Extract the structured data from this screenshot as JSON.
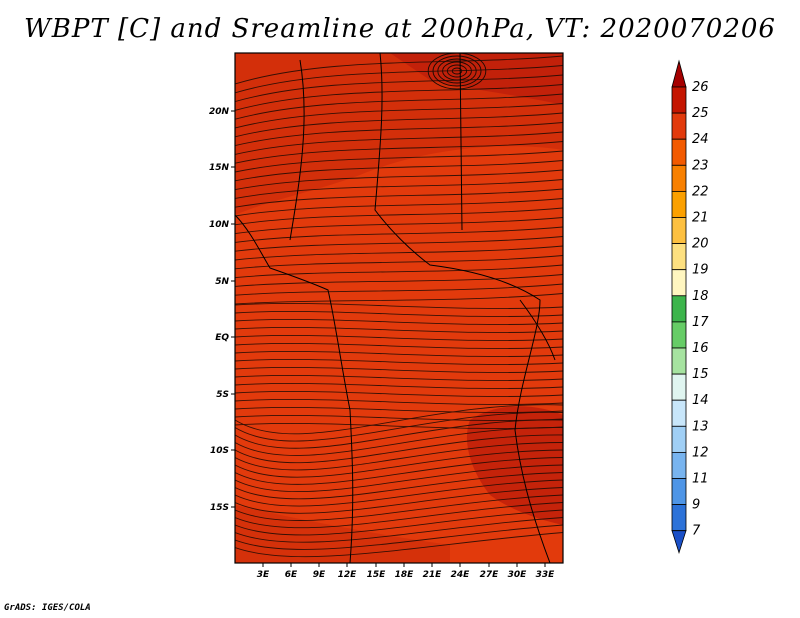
{
  "title": "WBPT [C] and Sreamline at 200hPa, VT: 2020070206",
  "credit": "GrADS: IGES/COLA",
  "colors": {
    "background": "#e23a0c",
    "streamline": "#1a0a04",
    "land_region": "#d02e0a",
    "deep_region": "#c0200a"
  },
  "colorbar": {
    "levels": [
      "26",
      "25",
      "24",
      "23",
      "22",
      "21",
      "20",
      "19",
      "18",
      "17",
      "16",
      "15",
      "14",
      "13",
      "12",
      "11",
      "9",
      "7"
    ],
    "colors": [
      "#a50000",
      "#c41500",
      "#e23a0c",
      "#f25a00",
      "#f88000",
      "#fba000",
      "#fdc040",
      "#fde080",
      "#fff6c0",
      "#3cb44b",
      "#66cc66",
      "#a6e3a0",
      "#e0f5f0",
      "#c8e6fa",
      "#a0cff5",
      "#78b4ef",
      "#4e95e6",
      "#2c72d8",
      "#1a50c8"
    ]
  },
  "axes": {
    "lat_labels": [
      "20N",
      "15N",
      "10N",
      "5N",
      "EQ",
      "5S",
      "10S",
      "15S"
    ],
    "lon_labels": [
      "3E",
      "6E",
      "9E",
      "12E",
      "15E",
      "18E",
      "21E",
      "24E",
      "27E",
      "30E",
      "33E"
    ]
  }
}
